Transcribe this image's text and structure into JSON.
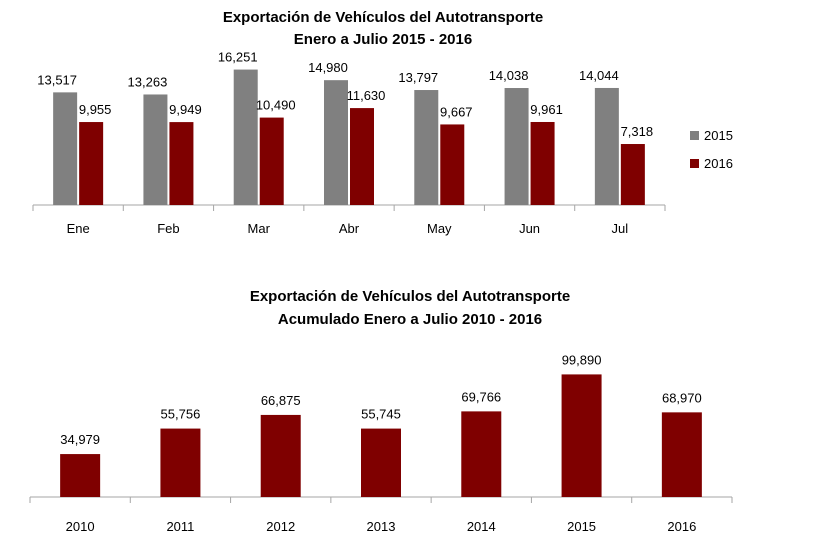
{
  "colors": {
    "s2015": "#808080",
    "s2016": "#7f0000",
    "axis": "#a6a6a6"
  },
  "chart_data": [
    {
      "type": "bar",
      "title": "Exportación de Vehículos del Autotransporte",
      "subtitle": "Enero a Julio 2015 - 2016",
      "categories": [
        "Ene",
        "Feb",
        "Mar",
        "Abr",
        "May",
        "Jun",
        "Jul"
      ],
      "series": [
        {
          "name": "2015",
          "values": [
            13517,
            13263,
            16251,
            14980,
            13797,
            14038,
            14044
          ],
          "labels": [
            "13,517",
            "13,263",
            "16,251",
            "14,980",
            "13,797",
            "14,038",
            "14,044"
          ]
        },
        {
          "name": "2016",
          "values": [
            9955,
            9949,
            10490,
            11630,
            9667,
            9961,
            7318
          ],
          "labels": [
            "9,955",
            "9,949",
            "10,490",
            "11,630",
            "9,667",
            "9,961",
            "7,318"
          ]
        }
      ],
      "ylim": [
        0,
        18000
      ],
      "legend": "right",
      "grid": false
    },
    {
      "type": "bar",
      "title": "Exportación de Vehículos del Autotransporte",
      "subtitle": "Acumulado Enero a Julio 2010 - 2016",
      "categories": [
        "2010",
        "2011",
        "2012",
        "2013",
        "2014",
        "2015",
        "2016"
      ],
      "values": [
        34979,
        55756,
        66875,
        55745,
        69766,
        99890,
        68970
      ],
      "labels": [
        "34,979",
        "55,756",
        "66,875",
        "55,745",
        "69,766",
        "99,890",
        "68,970"
      ],
      "ylim": [
        0,
        110000
      ],
      "grid": false
    }
  ]
}
